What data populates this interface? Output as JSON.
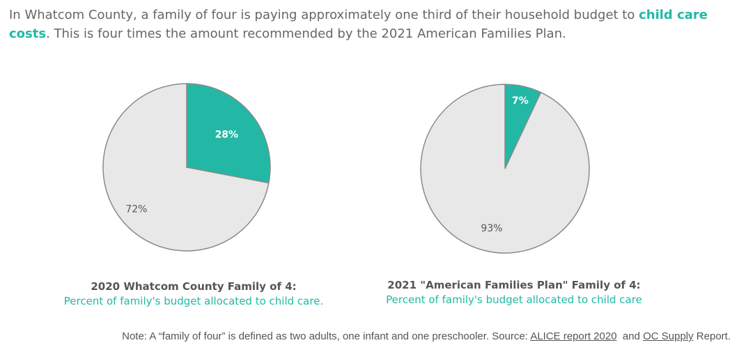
{
  "headline": {
    "text_before": "In Whatcom County, a family of four is paying approximately one third of their household budget to ",
    "highlight": "child care costs",
    "text_after": ". This is four times the amount recommended by the 2021 American Families Plan."
  },
  "colors": {
    "accent": "#22b8a5",
    "remainder": "#e8e8e8",
    "outline": "#8a8a8a"
  },
  "chart_data": [
    {
      "type": "pie",
      "title": "2020 Whatcom County Family of 4:",
      "subtitle": "Percent of family's budget allocated to child care.",
      "slices": [
        {
          "label": "28%",
          "value": 28,
          "color": "#22b8a5"
        },
        {
          "label": "72%",
          "value": 72,
          "color": "#e8e8e8"
        }
      ]
    },
    {
      "type": "pie",
      "title": "2021 \"American Families Plan\" Family of 4:",
      "subtitle": "Percent of family's budget allocated to child care",
      "slices": [
        {
          "label": "7%",
          "value": 7,
          "color": "#22b8a5"
        },
        {
          "label": "93%",
          "value": 93,
          "color": "#e8e8e8"
        }
      ]
    }
  ],
  "note": {
    "text_before": "Note: A “family of four” is defined as two adults, one infant and one preschooler. Source: ",
    "link1": "ALICE report 2020",
    "text_middle": "  and ",
    "link2": "OC Supply",
    "text_after": " Report."
  }
}
